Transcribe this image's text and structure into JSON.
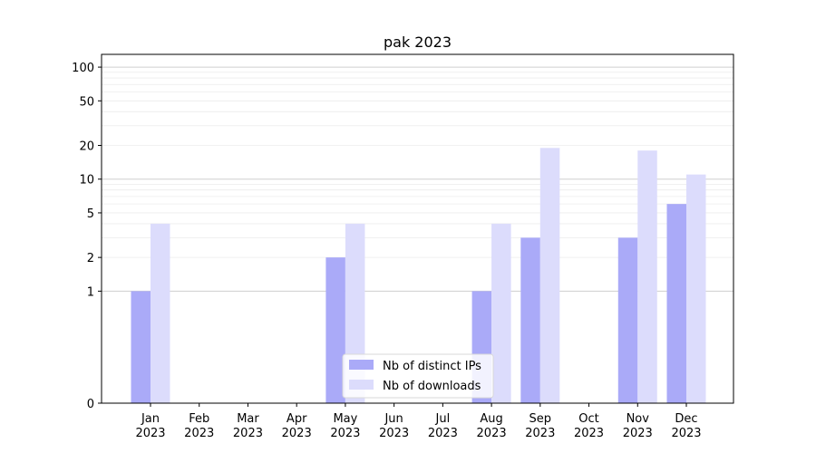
{
  "chart_data": {
    "type": "bar",
    "title": "pak 2023",
    "xlabel": "",
    "ylabel": "",
    "scale": "symlog",
    "ylim": [
      0,
      130
    ],
    "y_ticks": [
      0,
      1,
      2,
      5,
      10,
      20,
      50,
      100
    ],
    "categories": [
      {
        "month": "Jan",
        "year": "2023"
      },
      {
        "month": "Feb",
        "year": "2023"
      },
      {
        "month": "Mar",
        "year": "2023"
      },
      {
        "month": "Apr",
        "year": "2023"
      },
      {
        "month": "May",
        "year": "2023"
      },
      {
        "month": "Jun",
        "year": "2023"
      },
      {
        "month": "Jul",
        "year": "2023"
      },
      {
        "month": "Aug",
        "year": "2023"
      },
      {
        "month": "Sep",
        "year": "2023"
      },
      {
        "month": "Oct",
        "year": "2023"
      },
      {
        "month": "Nov",
        "year": "2023"
      },
      {
        "month": "Dec",
        "year": "2023"
      }
    ],
    "series": [
      {
        "name": "Nb of distinct IPs",
        "color": "#aaaaf8",
        "values": [
          1,
          0,
          0,
          0,
          2,
          0,
          0,
          1,
          3,
          0,
          3,
          6
        ]
      },
      {
        "name": "Nb of downloads",
        "color": "#dcdcfc",
        "values": [
          4,
          0,
          0,
          0,
          4,
          0,
          0,
          4,
          19,
          0,
          18,
          11
        ]
      }
    ],
    "legend_position": "lower center",
    "grid": true
  }
}
